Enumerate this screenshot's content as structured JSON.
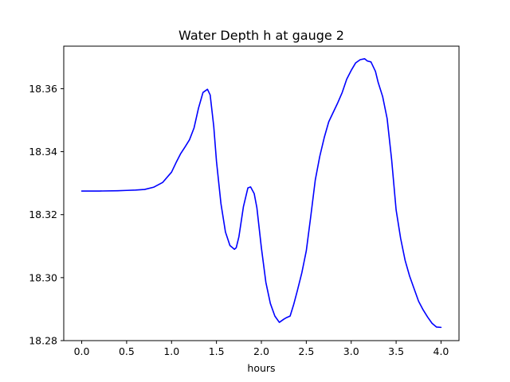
{
  "chart_data": {
    "type": "line",
    "title": "Water Depth h at gauge 2",
    "xlabel": "hours",
    "ylabel": "",
    "xlim": [
      -0.2,
      4.2
    ],
    "ylim": [
      18.28,
      18.3735
    ],
    "xticks": [
      0.0,
      0.5,
      1.0,
      1.5,
      2.0,
      2.5,
      3.0,
      3.5,
      4.0
    ],
    "xtick_labels": [
      "0.0",
      "0.5",
      "1.0",
      "1.5",
      "2.0",
      "2.5",
      "3.0",
      "3.5",
      "4.0"
    ],
    "yticks": [
      18.28,
      18.3,
      18.32,
      18.34,
      18.36
    ],
    "ytick_labels": [
      "18.28",
      "18.30",
      "18.32",
      "18.34",
      "18.36"
    ],
    "grid": false,
    "series": [
      {
        "color": "#0000ff",
        "x": [
          0.0,
          0.2,
          0.4,
          0.5,
          0.6,
          0.7,
          0.8,
          0.9,
          1.0,
          1.05,
          1.1,
          1.15,
          1.2,
          1.25,
          1.3,
          1.35,
          1.4,
          1.43,
          1.47,
          1.5,
          1.55,
          1.6,
          1.65,
          1.7,
          1.72,
          1.75,
          1.8,
          1.85,
          1.88,
          1.92,
          1.95,
          2.0,
          2.05,
          2.1,
          2.15,
          2.2,
          2.25,
          2.28,
          2.32,
          2.36,
          2.4,
          2.45,
          2.5,
          2.55,
          2.6,
          2.65,
          2.7,
          2.75,
          2.8,
          2.85,
          2.9,
          2.95,
          3.0,
          3.05,
          3.1,
          3.15,
          3.18,
          3.22,
          3.27,
          3.3,
          3.35,
          3.4,
          3.45,
          3.5,
          3.55,
          3.6,
          3.65,
          3.7,
          3.75,
          3.8,
          3.85,
          3.9,
          3.95,
          4.0
        ],
        "y": [
          18.3275,
          18.3275,
          18.3276,
          18.3277,
          18.3278,
          18.328,
          18.3287,
          18.3302,
          18.3335,
          18.3365,
          18.3393,
          18.3415,
          18.3438,
          18.3475,
          18.3538,
          18.3588,
          18.3598,
          18.358,
          18.348,
          18.337,
          18.3235,
          18.3145,
          18.3102,
          18.309,
          18.3095,
          18.313,
          18.3225,
          18.3285,
          18.3288,
          18.3267,
          18.3222,
          18.3095,
          18.2985,
          18.2918,
          18.2878,
          18.2858,
          18.2868,
          18.2873,
          18.2878,
          18.2915,
          18.2958,
          18.3015,
          18.3085,
          18.3195,
          18.331,
          18.3385,
          18.3445,
          18.3495,
          18.3525,
          18.3555,
          18.3588,
          18.363,
          18.3658,
          18.3682,
          18.3692,
          18.3695,
          18.3688,
          18.3685,
          18.3655,
          18.362,
          18.3575,
          18.3505,
          18.3375,
          18.3215,
          18.3125,
          18.3055,
          18.3005,
          18.2965,
          18.2925,
          18.2898,
          18.2875,
          18.2855,
          18.2843,
          18.2842
        ]
      }
    ]
  }
}
